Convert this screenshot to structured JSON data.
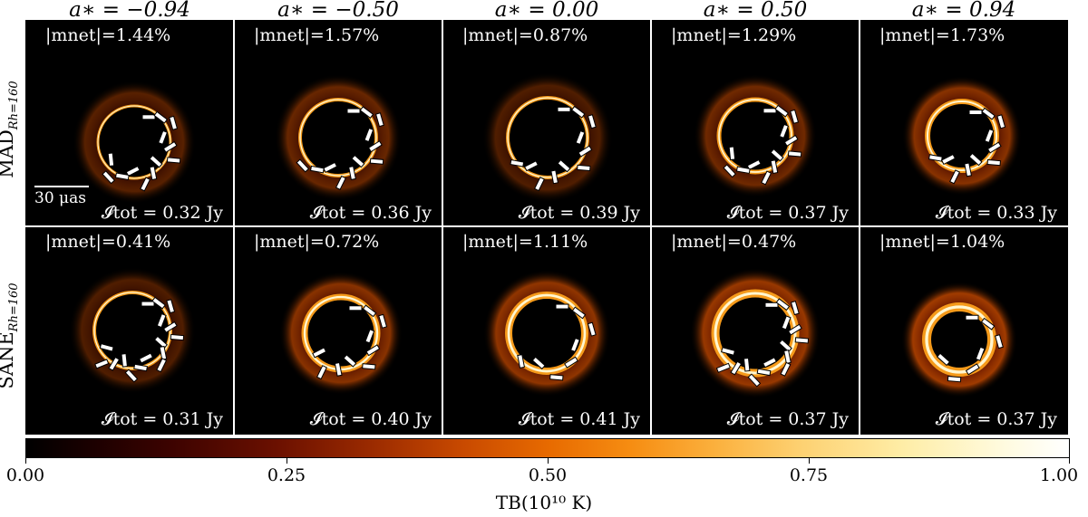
{
  "columns": [
    {
      "title": "a∗ = −0.94"
    },
    {
      "title": "a∗ = −0.50"
    },
    {
      "title": "a∗ = 0.00"
    },
    {
      "title": "a∗ = 0.50"
    },
    {
      "title": "a∗ = 0.94"
    }
  ],
  "rows": [
    {
      "label_main": "MAD",
      "label_sub": "Rh=160",
      "panels": [
        {
          "mnet": "|mnet|=1.44%",
          "itot": "𝓘tot = 0.32 Jy"
        },
        {
          "mnet": "|mnet|=1.57%",
          "itot": "𝓘tot = 0.36 Jy"
        },
        {
          "mnet": "|mnet|=0.87%",
          "itot": "𝓘tot = 0.39 Jy"
        },
        {
          "mnet": "|mnet|=1.29%",
          "itot": "𝓘tot = 0.37 Jy"
        },
        {
          "mnet": "|mnet|=1.73%",
          "itot": "𝓘tot = 0.33 Jy"
        }
      ]
    },
    {
      "label_main": "SANE",
      "label_sub": "Rh=160",
      "panels": [
        {
          "mnet": "|mnet|=0.41%",
          "itot": "𝓘tot = 0.31 Jy"
        },
        {
          "mnet": "|mnet|=0.72%",
          "itot": "𝓘tot = 0.40 Jy"
        },
        {
          "mnet": "|mnet|=1.11%",
          "itot": "𝓘tot = 0.41 Jy"
        },
        {
          "mnet": "|mnet|=0.47%",
          "itot": "𝓘tot = 0.37 Jy"
        },
        {
          "mnet": "|mnet|=1.04%",
          "itot": "𝓘tot = 0.37 Jy"
        }
      ]
    }
  ],
  "scale_bar_label": "30 μas",
  "colorbar": {
    "ticks": [
      "0.00",
      "0.25",
      "0.50",
      "0.75",
      "1.00"
    ],
    "label": "TB(10¹⁰ K)"
  }
}
